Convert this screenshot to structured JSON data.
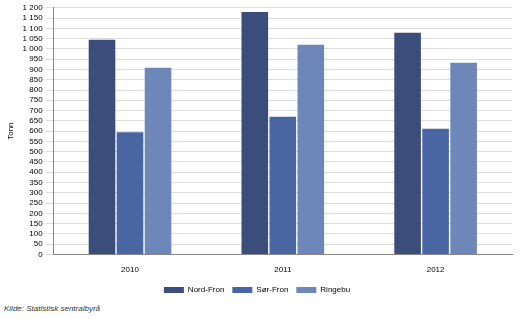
{
  "chart_data": {
    "type": "bar",
    "y_label": "Tonn",
    "source": "Kilde: Statistisk sentralbyrå",
    "categories": [
      "2010",
      "2011",
      "2012"
    ],
    "series": [
      {
        "name": "Nord-Fron",
        "color": "#3b4d7a",
        "values": [
          1045,
          1180,
          1078
        ]
      },
      {
        "name": "Sør-Fron",
        "color": "#4a66a2",
        "values": [
          595,
          670,
          612
        ]
      },
      {
        "name": "Ringebu",
        "color": "#6e87b9",
        "values": [
          908,
          1020,
          933
        ]
      }
    ],
    "ylim": [
      0,
      1200
    ],
    "yticks": [
      0,
      50,
      100,
      150,
      200,
      250,
      300,
      350,
      400,
      450,
      500,
      550,
      600,
      650,
      700,
      750,
      800,
      850,
      900,
      950,
      {
        "value": 1000,
        "label": "1 000"
      },
      {
        "value": 1050,
        "label": "1 050"
      },
      {
        "value": 1100,
        "label": "1 100"
      },
      {
        "value": 1150,
        "label": "1 150"
      },
      {
        "value": 1200,
        "label": "1 200"
      }
    ],
    "grid": true,
    "legend": "bottom"
  }
}
